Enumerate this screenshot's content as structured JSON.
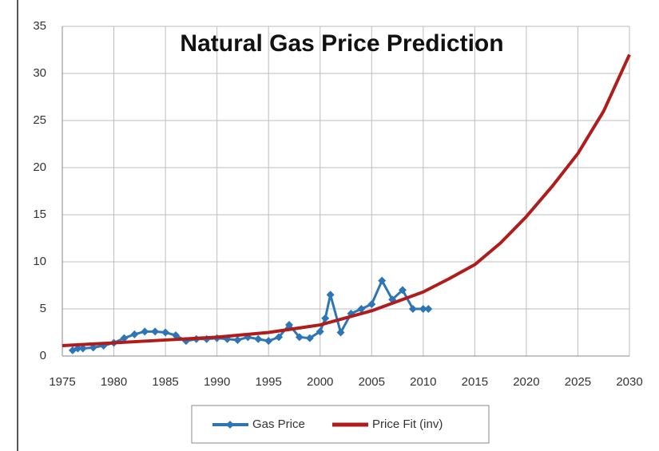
{
  "chart_data": {
    "type": "line",
    "title": "Natural Gas Price Prediction",
    "xlim": [
      1975,
      2030
    ],
    "xticks": [
      1975,
      1980,
      1985,
      1990,
      1995,
      2000,
      2005,
      2010,
      2015,
      2020,
      2025,
      2030
    ],
    "ylim": [
      0,
      35
    ],
    "yticks": [
      0,
      5,
      10,
      15,
      20,
      25,
      30,
      35
    ],
    "grid": true,
    "legend": "bottom",
    "series": [
      {
        "name": "Gas Price",
        "color": "#2e75b6",
        "marker": "diamond",
        "x": [
          1976,
          1976.5,
          1977,
          1978,
          1979,
          1980,
          1981,
          1982,
          1983,
          1984,
          1985,
          1986,
          1987,
          1988,
          1989,
          1990,
          1991,
          1992,
          1993,
          1994,
          1995,
          1996,
          1997,
          1998,
          1999,
          2000,
          2000.5,
          2001,
          2002,
          2003,
          2004,
          2005,
          2006,
          2007,
          2008,
          2009,
          2010,
          2010.5
        ],
        "values": [
          0.6,
          0.8,
          0.8,
          0.9,
          1.1,
          1.4,
          1.9,
          2.3,
          2.6,
          2.6,
          2.5,
          2.2,
          1.6,
          1.8,
          1.8,
          1.9,
          1.8,
          1.7,
          2.0,
          1.8,
          1.6,
          2.0,
          3.3,
          2.0,
          1.9,
          2.6,
          4.0,
          6.5,
          2.5,
          4.5,
          5.0,
          5.5,
          8.0,
          6.0,
          7.0,
          5.0,
          5.0,
          5.0
        ]
      },
      {
        "name": "Price Fit (inv)",
        "color": "#b01c1c",
        "x": [
          1975,
          1980,
          1985,
          1990,
          1995,
          2000,
          2005,
          2010,
          2012.5,
          2015,
          2017.5,
          2020,
          2022.5,
          2025,
          2027.5,
          2030
        ],
        "values": [
          1.1,
          1.4,
          1.7,
          2.0,
          2.5,
          3.3,
          4.8,
          6.8,
          8.2,
          9.7,
          12.0,
          14.8,
          18.0,
          21.5,
          26.0,
          32.0
        ]
      }
    ]
  }
}
